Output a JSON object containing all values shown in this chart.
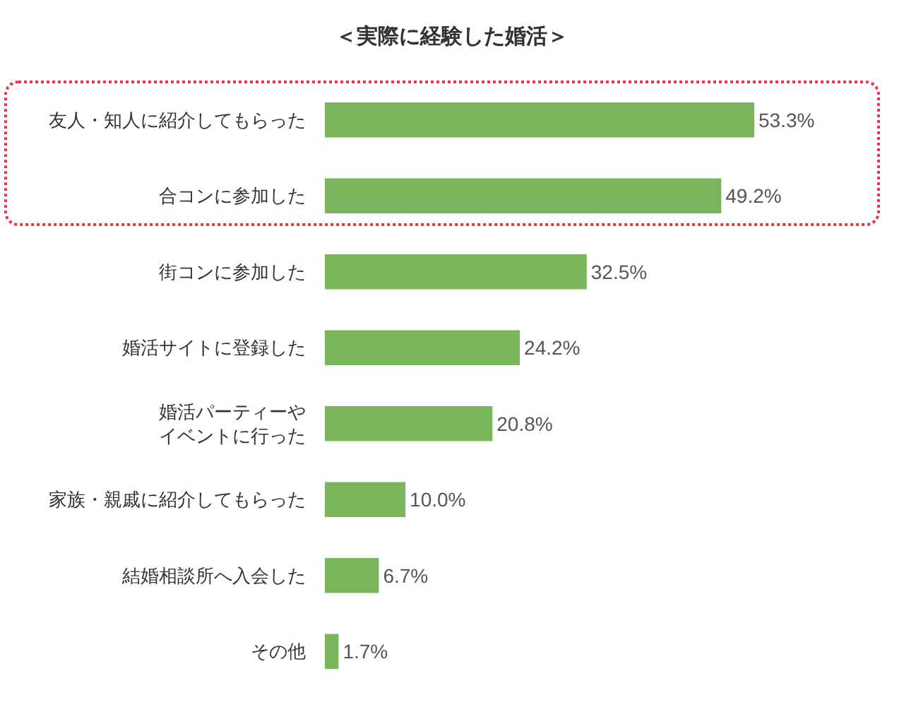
{
  "chart_data": {
    "type": "bar",
    "orientation": "horizontal",
    "title": "＜実際に経験した婚活＞",
    "categories": [
      "友人・知人に紹介してもらった",
      "合コンに参加した",
      "街コンに参加した",
      "婚活サイトに登録した",
      "婚活パーティーやイベントに行った",
      "家族・親戚に紹介してもらった",
      "結婚相談所へ入会した",
      "その他"
    ],
    "values": [
      53.3,
      49.2,
      32.5,
      24.2,
      20.8,
      10.0,
      6.7,
      1.7
    ],
    "value_labels": [
      "53.3%",
      "49.2%",
      "32.5%",
      "24.2%",
      "20.8%",
      "10.0%",
      "6.7%",
      "1.7%"
    ],
    "color": "#7ab55c"
  }
}
